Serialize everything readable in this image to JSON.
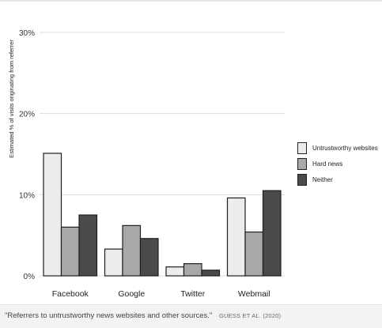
{
  "chart_data": {
    "type": "bar",
    "ylabel": "Estimated % of visits originating from referrer",
    "xlabel": "",
    "ylim": [
      0,
      30
    ],
    "yticks": [
      "0%",
      "10%",
      "20%",
      "30%"
    ],
    "categories": [
      "Facebook",
      "Google",
      "Twitter",
      "Webmail"
    ],
    "series": [
      {
        "name": "Untrustworthy websites",
        "color": "#ececec",
        "values": [
          15.1,
          3.3,
          1.1,
          9.6
        ]
      },
      {
        "name": "Hard news",
        "color": "#a8a8a8",
        "values": [
          6.0,
          6.2,
          1.5,
          5.4
        ]
      },
      {
        "name": "Neither",
        "color": "#4a4a4a",
        "values": [
          7.5,
          4.6,
          0.7,
          10.5
        ]
      }
    ],
    "grid": true,
    "legend_position": "right"
  },
  "caption": {
    "text": "\"Referrers to untrustworthy news websites and other sources.\"",
    "credit": "GUESS ET AL. (2020)"
  }
}
